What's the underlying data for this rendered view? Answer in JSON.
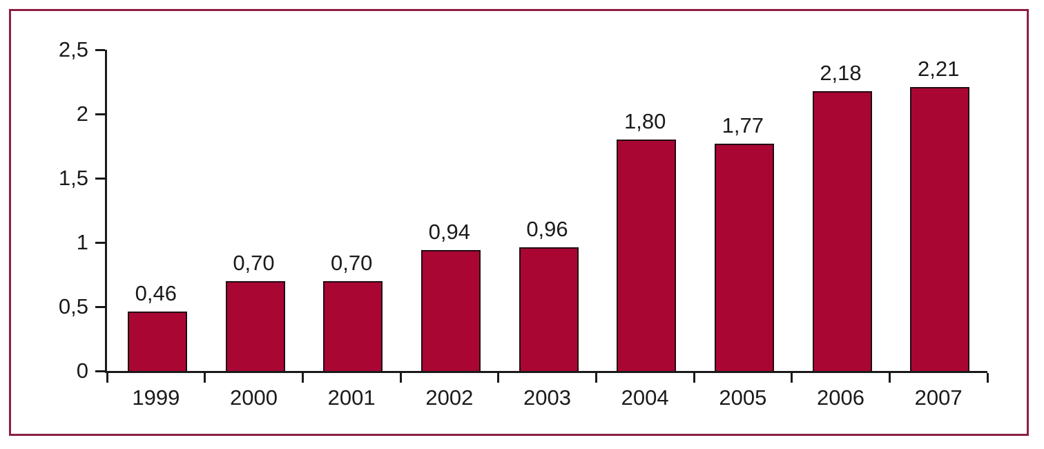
{
  "chart_data": {
    "type": "bar",
    "title": "",
    "xlabel": "",
    "ylabel": "",
    "categories": [
      "1999",
      "2000",
      "2001",
      "2002",
      "2003",
      "2004",
      "2005",
      "2006",
      "2007"
    ],
    "values": [
      0.46,
      0.7,
      0.7,
      0.94,
      0.96,
      1.8,
      1.77,
      2.18,
      2.21
    ],
    "value_labels": [
      "0,46",
      "0,70",
      "0,70",
      "0,94",
      "0,96",
      "1,80",
      "1,77",
      "2,18",
      "2,21"
    ],
    "y_ticks": [
      {
        "value": 0,
        "label": "0"
      },
      {
        "value": 0.5,
        "label": "0,5"
      },
      {
        "value": 1,
        "label": "1"
      },
      {
        "value": 1.5,
        "label": "1,5"
      },
      {
        "value": 2,
        "label": "2"
      },
      {
        "value": 2.5,
        "label": "2,5"
      }
    ],
    "ylim": [
      0,
      2.5
    ],
    "grid": false,
    "legend": "none",
    "decimal_separator": ","
  },
  "style": {
    "bar_fill": "#A90634",
    "bar_border": "#200A12",
    "frame_border": "#8C1F44",
    "axis_color": "#1A1A1A",
    "text_color": "#1A1A1A",
    "background": "#FFFFFF"
  }
}
